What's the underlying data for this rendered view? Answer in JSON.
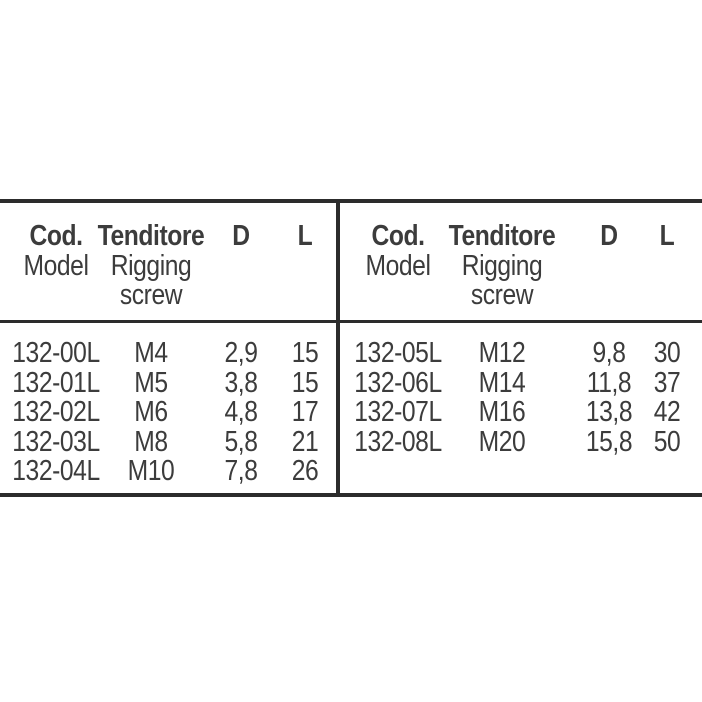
{
  "style": {
    "background": "#ffffff",
    "text_color": "#3c3c3c",
    "rule_color": "#2c2c2c"
  },
  "tables": [
    {
      "side": "left",
      "header": {
        "code_title": "Cod.",
        "code_subtitle": "Model",
        "size_title": "Tenditore",
        "size_subtitle_line1": "Rigging",
        "size_subtitle_line2": "screw",
        "d_title": "D",
        "l_title": "L"
      },
      "rows": [
        {
          "code": "132-00L",
          "size": "M4",
          "d": "2,9",
          "l": "15"
        },
        {
          "code": "132-01L",
          "size": "M5",
          "d": "3,8",
          "l": "15"
        },
        {
          "code": "132-02L",
          "size": "M6",
          "d": "4,8",
          "l": "17"
        },
        {
          "code": "132-03L",
          "size": "M8",
          "d": "5,8",
          "l": "21"
        },
        {
          "code": "132-04L",
          "size": "M10",
          "d": "7,8",
          "l": "26"
        }
      ]
    },
    {
      "side": "right",
      "header": {
        "code_title": "Cod.",
        "code_subtitle": "Model",
        "size_title": "Tenditore",
        "size_subtitle_line1": "Rigging",
        "size_subtitle_line2": "screw",
        "d_title": "D",
        "l_title": "L"
      },
      "rows": [
        {
          "code": "132-05L",
          "size": "M12",
          "d": "9,8",
          "l": "30"
        },
        {
          "code": "132-06L",
          "size": "M14",
          "d": "11,8",
          "l": "37"
        },
        {
          "code": "132-07L",
          "size": "M16",
          "d": "13,8",
          "l": "42"
        },
        {
          "code": "132-08L",
          "size": "M20",
          "d": "15,8",
          "l": "50"
        }
      ]
    }
  ]
}
